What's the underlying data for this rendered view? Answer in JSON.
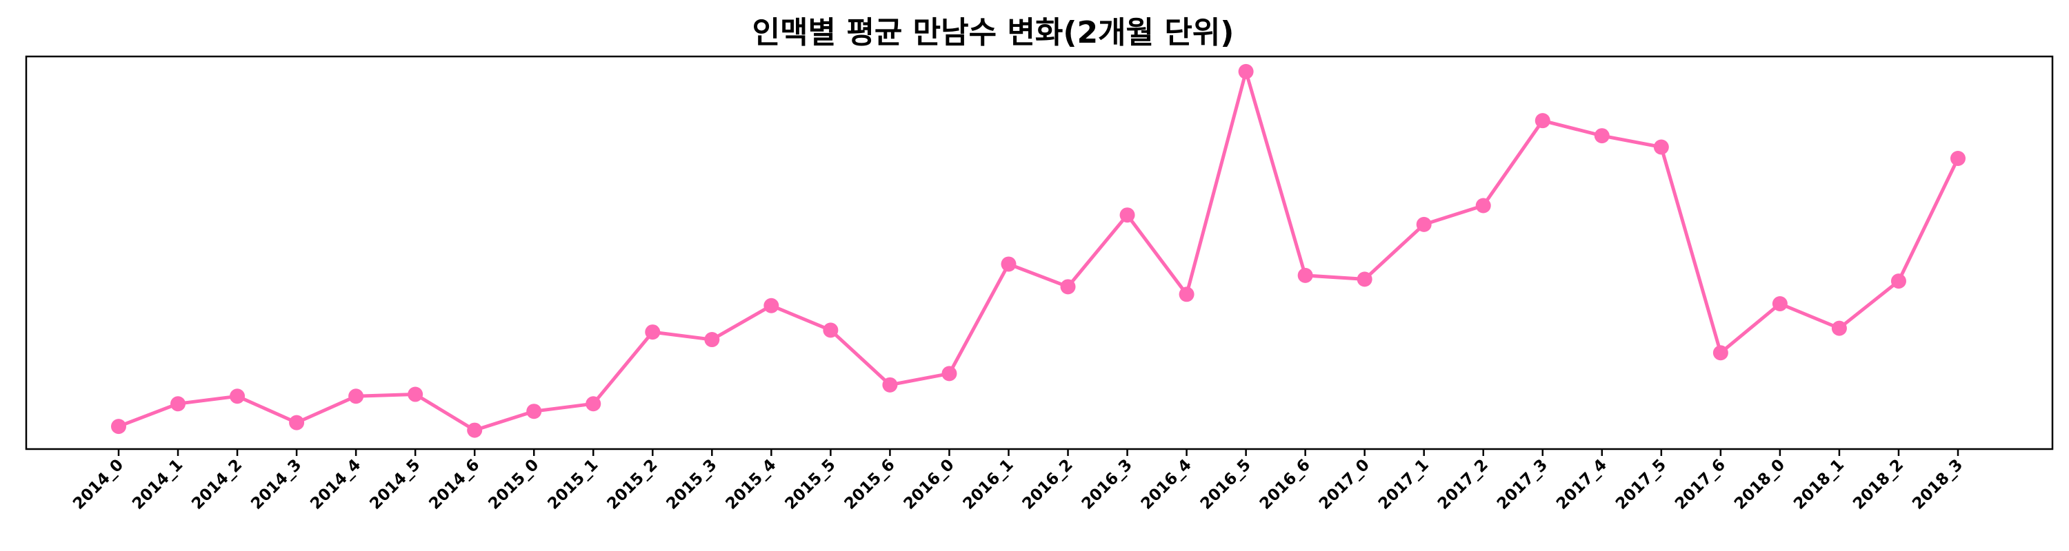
{
  "chart_data": {
    "type": "line",
    "title": "인맥별 평균 만남수 변화(2개월 단위)",
    "xlabel": "",
    "ylabel": "",
    "x": [
      "2014_0",
      "2014_1",
      "2014_2",
      "2014_3",
      "2014_4",
      "2014_5",
      "2014_6",
      "2015_0",
      "2015_1",
      "2015_2",
      "2015_3",
      "2015_4",
      "2015_5",
      "2015_6",
      "2016_0",
      "2016_1",
      "2016_2",
      "2016_3",
      "2016_4",
      "2016_5",
      "2016_6",
      "2017_0",
      "2017_1",
      "2017_2",
      "2017_3",
      "2017_4",
      "2017_5",
      "2017_6",
      "2018_0",
      "2018_1",
      "2018_2",
      "2018_3"
    ],
    "series": [
      {
        "color": "#ff69b4",
        "values": [
          1.06,
          1.12,
          1.14,
          1.07,
          1.14,
          1.145,
          1.05,
          1.1,
          1.12,
          1.31,
          1.29,
          1.38,
          1.315,
          1.17,
          1.2,
          1.49,
          1.43,
          1.62,
          1.41,
          2.0,
          1.46,
          1.45,
          1.595,
          1.645,
          1.87,
          1.83,
          1.8,
          1.255,
          1.385,
          1.32,
          1.445,
          1.77
        ]
      }
    ],
    "ylim": [
      1.0,
      2.04
    ],
    "yticks_visible": false,
    "grid": false,
    "legend": "none"
  }
}
